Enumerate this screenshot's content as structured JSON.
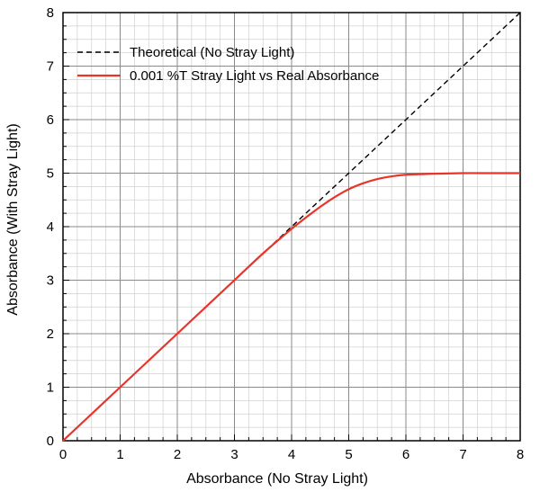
{
  "colors": {
    "theoretical": "#000000",
    "measured": "#e8352b",
    "grid_major": "#8a8a8a",
    "grid_minor": "#d0d0d0",
    "frame": "#000000"
  },
  "chart_data": {
    "type": "line",
    "title": "",
    "xlabel": "Absorbance (No Stray Light)",
    "ylabel": "Absorbance (With Stray Light)",
    "xlim": [
      0,
      8
    ],
    "ylim": [
      0,
      8
    ],
    "x_ticks": [
      "0",
      "1",
      "2",
      "3",
      "4",
      "5",
      "6",
      "7",
      "8"
    ],
    "y_ticks": [
      "0",
      "1",
      "2",
      "3",
      "4",
      "5",
      "6",
      "7",
      "8"
    ],
    "grid": true,
    "legend_position": "top-left",
    "series": [
      {
        "name": "Theoretical (No Stray Light)",
        "style": "dashed",
        "color": "#000000",
        "x": [
          0,
          8
        ],
        "y": [
          0,
          8
        ]
      },
      {
        "name": "0.001 %T Stray Light vs Real Absorbance",
        "style": "solid",
        "color": "#e8352b",
        "x": [
          0,
          1,
          2,
          3,
          3.5,
          4.0,
          4.25,
          4.5,
          4.75,
          5.0,
          5.25,
          5.5,
          5.75,
          6.0,
          6.5,
          7.0,
          7.5,
          8.0
        ],
        "y": [
          0,
          1,
          2,
          3,
          3.5,
          3.96,
          4.17,
          4.37,
          4.55,
          4.7,
          4.81,
          4.89,
          4.94,
          4.97,
          4.99,
          5.0,
          5.0,
          5.0
        ]
      }
    ]
  }
}
